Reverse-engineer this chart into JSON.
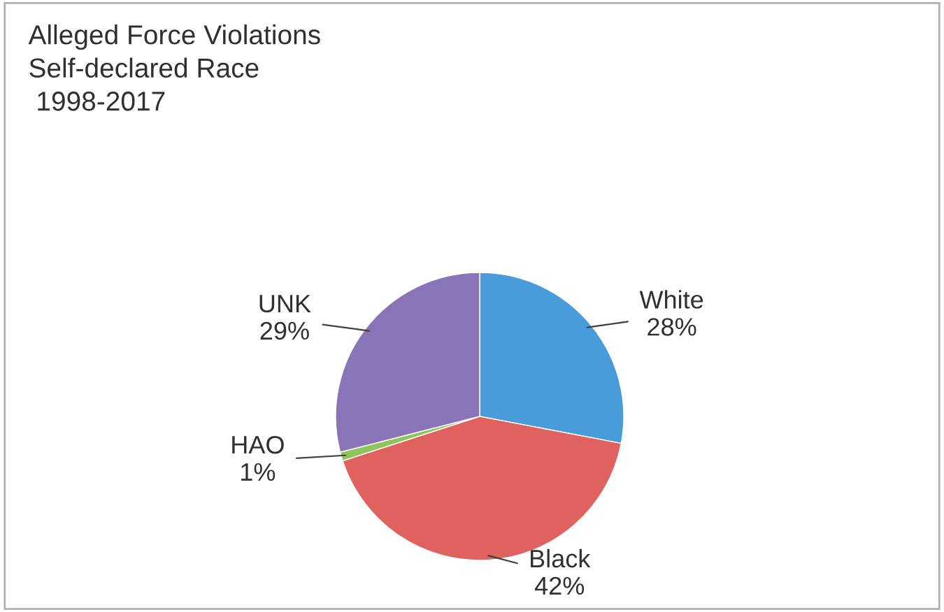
{
  "chart_data": {
    "type": "pie",
    "title": "Alleged Force Violations\nSelf-declared Race\n 1998-2017",
    "categories": [
      "White",
      "Black",
      "HAO",
      "UNK"
    ],
    "values": [
      28,
      42,
      1,
      29
    ],
    "value_labels": [
      "28%",
      "42%",
      "1%",
      "29%"
    ],
    "colors": [
      "#4a9bd9",
      "#e0625f",
      "#8fc45a",
      "#8a74b8"
    ],
    "legend": false
  }
}
